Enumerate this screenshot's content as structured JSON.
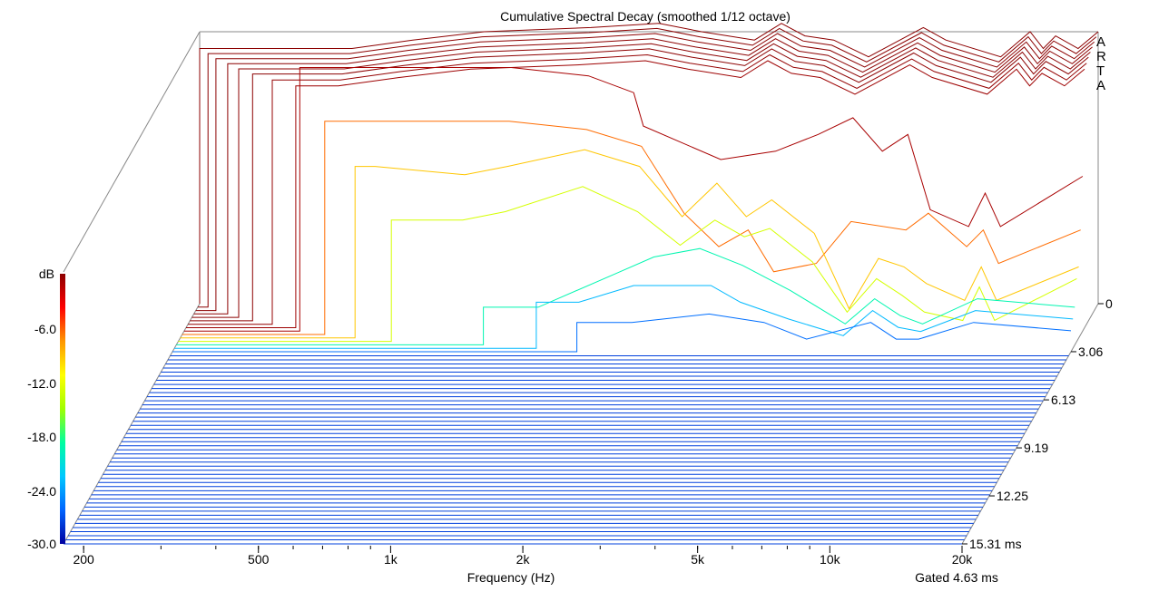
{
  "chart_data": {
    "type": "waterfall",
    "title": "Cumulative Spectral Decay (smoothed 1/12 octave)",
    "xlabel": "Frequency (Hz)",
    "footer": "Gated 4.63 ms",
    "brand_letters": [
      "A",
      "R",
      "T",
      "A"
    ],
    "xscale": "log",
    "xlim": [
      180,
      20000
    ],
    "x_ticks": [
      {
        "value": 200,
        "label": "200"
      },
      {
        "value": 500,
        "label": "500"
      },
      {
        "value": 1000,
        "label": "1k"
      },
      {
        "value": 2000,
        "label": "2k"
      },
      {
        "value": 5000,
        "label": "5k"
      },
      {
        "value": 10000,
        "label": "10k"
      },
      {
        "value": 20000,
        "label": "20k"
      }
    ],
    "z_ticks": [
      {
        "value": 0,
        "label": "0"
      },
      {
        "value": 3.06,
        "label": "3.06"
      },
      {
        "value": 6.13,
        "label": "6.13"
      },
      {
        "value": 9.19,
        "label": "9.19"
      },
      {
        "value": 12.25,
        "label": "12.25"
      },
      {
        "value": 15.31,
        "label": "15.31 ms"
      }
    ],
    "zlim": [
      0,
      15.31
    ],
    "colorbar": {
      "label": "dB",
      "ticks": [
        "-6.0",
        "-12.0",
        "-18.0",
        "-24.0",
        "-30.0"
      ],
      "range": [
        -32.5,
        0
      ],
      "colors": [
        "#0000a0",
        "#0064ff",
        "#00c8ff",
        "#00ffa0",
        "#a0ff00",
        "#ffff00",
        "#ff9600",
        "#ff0000",
        "#8c0000"
      ]
    },
    "ylim": [
      -32.5,
      0
    ],
    "front_slices": 47,
    "slices": [
      {
        "start": 180,
        "points": [
          [
            400,
            -2
          ],
          [
            550,
            -1
          ],
          [
            800,
            0
          ],
          [
            1400,
            0.5
          ],
          [
            2000,
            1
          ],
          [
            2500,
            0
          ],
          [
            3300,
            -1
          ],
          [
            3800,
            1
          ],
          [
            4300,
            -0.5
          ],
          [
            5000,
            -1
          ],
          [
            6000,
            -3
          ],
          [
            8000,
            0.5
          ],
          [
            9000,
            -1
          ],
          [
            12000,
            -3
          ],
          [
            14000,
            0
          ],
          [
            15000,
            -2
          ],
          [
            16000,
            -0.5
          ],
          [
            18000,
            -2
          ],
          [
            20000,
            0
          ]
        ]
      },
      {
        "start": 190,
        "points": [
          [
            400,
            -2.2
          ],
          [
            550,
            -1.2
          ],
          [
            800,
            -0.2
          ],
          [
            1400,
            0.3
          ],
          [
            2000,
            0.8
          ],
          [
            2500,
            -0.2
          ],
          [
            3300,
            -1.2
          ],
          [
            3800,
            0.8
          ],
          [
            4300,
            -0.7
          ],
          [
            5000,
            -1.2
          ],
          [
            6000,
            -3.2
          ],
          [
            8000,
            0.3
          ],
          [
            9000,
            -1.2
          ],
          [
            12000,
            -3.2
          ],
          [
            14000,
            -0.2
          ],
          [
            15000,
            -2.2
          ],
          [
            16000,
            -0.7
          ],
          [
            18000,
            -2.2
          ],
          [
            20000,
            -0.2
          ]
        ]
      },
      {
        "start": 200,
        "points": [
          [
            400,
            -2.4
          ],
          [
            550,
            -1.4
          ],
          [
            800,
            -0.4
          ],
          [
            1400,
            0.1
          ],
          [
            2000,
            0.6
          ],
          [
            2500,
            -0.4
          ],
          [
            3300,
            -1.4
          ],
          [
            3800,
            0.6
          ],
          [
            4300,
            -0.9
          ],
          [
            5000,
            -1.4
          ],
          [
            6000,
            -3.4
          ],
          [
            8000,
            0.1
          ],
          [
            9000,
            -1.4
          ],
          [
            12000,
            -3.4
          ],
          [
            14000,
            -0.4
          ],
          [
            15000,
            -2.4
          ],
          [
            16000,
            -0.9
          ],
          [
            18000,
            -2.4
          ],
          [
            20000,
            -0.4
          ]
        ]
      },
      {
        "start": 215,
        "points": [
          [
            400,
            -2.6
          ],
          [
            550,
            -1.6
          ],
          [
            800,
            -0.6
          ],
          [
            1400,
            -0.1
          ],
          [
            2000,
            0.4
          ],
          [
            2500,
            -0.6
          ],
          [
            3300,
            -1.6
          ],
          [
            3800,
            0.4
          ],
          [
            4300,
            -1.1
          ],
          [
            5000,
            -1.6
          ],
          [
            6000,
            -3.6
          ],
          [
            8000,
            -0.1
          ],
          [
            9000,
            -1.6
          ],
          [
            12000,
            -3.6
          ],
          [
            14000,
            -0.6
          ],
          [
            15000,
            -2.6
          ],
          [
            16000,
            -1.1
          ],
          [
            18000,
            -2.6
          ],
          [
            20000,
            -0.6
          ]
        ]
      },
      {
        "start": 230,
        "points": [
          [
            400,
            -2.8
          ],
          [
            550,
            -1.8
          ],
          [
            800,
            -0.8
          ],
          [
            1400,
            -0.3
          ],
          [
            2000,
            0.2
          ],
          [
            2500,
            -0.8
          ],
          [
            3300,
            -1.8
          ],
          [
            3800,
            0.2
          ],
          [
            4300,
            -1.3
          ],
          [
            5000,
            -1.8
          ],
          [
            6000,
            -3.8
          ],
          [
            8000,
            -0.3
          ],
          [
            9000,
            -1.8
          ],
          [
            12000,
            -3.8
          ],
          [
            14000,
            -0.8
          ],
          [
            15000,
            -2.8
          ],
          [
            16000,
            -1.3
          ],
          [
            18000,
            -2.8
          ],
          [
            20000,
            -0.8
          ]
        ]
      },
      {
        "start": 250,
        "points": [
          [
            400,
            -3
          ],
          [
            550,
            -2
          ],
          [
            800,
            -1
          ],
          [
            1400,
            -0.5
          ],
          [
            2000,
            0
          ],
          [
            2500,
            -1
          ],
          [
            3300,
            -2
          ],
          [
            3800,
            0
          ],
          [
            4300,
            -1.5
          ],
          [
            5000,
            -2
          ],
          [
            6000,
            -4
          ],
          [
            8000,
            -0.5
          ],
          [
            9000,
            -2
          ],
          [
            12000,
            -4
          ],
          [
            14000,
            -1
          ],
          [
            15000,
            -3
          ],
          [
            16000,
            -1.5
          ],
          [
            18000,
            -3
          ],
          [
            20000,
            -1
          ]
        ]
      },
      {
        "start": 280,
        "points": [
          [
            400,
            -3.3
          ],
          [
            550,
            -2.3
          ],
          [
            800,
            -1.3
          ],
          [
            1400,
            -0.8
          ],
          [
            2000,
            -0.3
          ],
          [
            2500,
            -1.3
          ],
          [
            3300,
            -2.3
          ],
          [
            3800,
            -0.3
          ],
          [
            4300,
            -1.8
          ],
          [
            5000,
            -2.3
          ],
          [
            6000,
            -4.3
          ],
          [
            8000,
            -0.8
          ],
          [
            9000,
            -2.3
          ],
          [
            12000,
            -4.3
          ],
          [
            14000,
            -1.3
          ],
          [
            15000,
            -3.3
          ],
          [
            16000,
            -1.8
          ],
          [
            18000,
            -3.3
          ],
          [
            20000,
            -1.3
          ]
        ]
      },
      {
        "start": 320,
        "points": [
          [
            400,
            -3.6
          ],
          [
            550,
            -2.6
          ],
          [
            800,
            -1.6
          ],
          [
            1400,
            -1.1
          ],
          [
            2000,
            -0.6
          ],
          [
            2500,
            -1.6
          ],
          [
            3300,
            -2.6
          ],
          [
            3800,
            -0.6
          ],
          [
            4300,
            -2.1
          ],
          [
            5000,
            -2.6
          ],
          [
            6000,
            -4.6
          ],
          [
            8000,
            -1.1
          ],
          [
            9000,
            -2.6
          ],
          [
            12000,
            -4.6
          ],
          [
            14000,
            -1.6
          ],
          [
            15000,
            -3.6
          ],
          [
            16000,
            -2.1
          ],
          [
            18000,
            -3.6
          ],
          [
            20000,
            -1.6
          ]
        ]
      },
      {
        "start": 330,
        "points": [
          [
            500,
            -1
          ],
          [
            1000,
            -1
          ],
          [
            1500,
            -2
          ],
          [
            1900,
            -4
          ],
          [
            2000,
            -8
          ],
          [
            3000,
            -12
          ],
          [
            4000,
            -11
          ],
          [
            5000,
            -9
          ],
          [
            6000,
            -7
          ],
          [
            7000,
            -11
          ],
          [
            8000,
            -9
          ],
          [
            9000,
            -18
          ],
          [
            11000,
            -20
          ],
          [
            12000,
            -16
          ],
          [
            13000,
            -20
          ],
          [
            20000,
            -14
          ]
        ]
      },
      {
        "start": 380,
        "points": [
          [
            500,
            -7
          ],
          [
            1000,
            -7
          ],
          [
            1500,
            -8
          ],
          [
            2000,
            -10
          ],
          [
            2500,
            -18
          ],
          [
            3000,
            -22
          ],
          [
            3500,
            -20
          ],
          [
            4000,
            -25
          ],
          [
            5000,
            -24
          ],
          [
            6000,
            -19
          ],
          [
            8000,
            -20
          ],
          [
            9000,
            -18
          ],
          [
            11000,
            -22
          ],
          [
            12000,
            -20
          ],
          [
            13000,
            -24
          ],
          [
            20000,
            -20
          ]
        ]
      },
      {
        "start": 450,
        "points": [
          [
            500,
            -12
          ],
          [
            800,
            -13
          ],
          [
            1000,
            -12
          ],
          [
            1500,
            -10
          ],
          [
            2000,
            -12
          ],
          [
            2500,
            -18
          ],
          [
            3000,
            -14
          ],
          [
            3500,
            -18
          ],
          [
            4000,
            -16
          ],
          [
            5000,
            -20
          ],
          [
            6000,
            -29
          ],
          [
            7000,
            -23
          ],
          [
            8000,
            -24
          ],
          [
            9000,
            -26
          ],
          [
            11000,
            -28
          ],
          [
            12000,
            -24
          ],
          [
            13000,
            -28
          ],
          [
            20000,
            -24
          ]
        ]
      },
      {
        "start": 550,
        "points": [
          [
            800,
            -18
          ],
          [
            1000,
            -17
          ],
          [
            1500,
            -14
          ],
          [
            2000,
            -17
          ],
          [
            2500,
            -21
          ],
          [
            3000,
            -18
          ],
          [
            3500,
            -20
          ],
          [
            4000,
            -19
          ],
          [
            5000,
            -23
          ],
          [
            6000,
            -29
          ],
          [
            7000,
            -25
          ],
          [
            8000,
            -27
          ],
          [
            9000,
            -29
          ],
          [
            11000,
            -30
          ],
          [
            12000,
            -26
          ],
          [
            13000,
            -30
          ],
          [
            20000,
            -25
          ]
        ]
      },
      {
        "start": 900,
        "points": [
          [
            1200,
            -28
          ],
          [
            1800,
            -24
          ],
          [
            2200,
            -22
          ],
          [
            2800,
            -21
          ],
          [
            3500,
            -23
          ],
          [
            4500,
            -26
          ],
          [
            6000,
            -30
          ],
          [
            7000,
            -27
          ],
          [
            8000,
            -29
          ],
          [
            9000,
            -30
          ],
          [
            12000,
            -27
          ],
          [
            20000,
            -28
          ]
        ]
      },
      {
        "start": 1200,
        "points": [
          [
            1500,
            -27
          ],
          [
            2000,
            -25
          ],
          [
            3000,
            -25
          ],
          [
            3500,
            -27
          ],
          [
            4500,
            -29
          ],
          [
            6000,
            -31
          ],
          [
            7000,
            -28
          ],
          [
            8000,
            -30
          ],
          [
            9000,
            -30.5
          ],
          [
            12000,
            -28
          ],
          [
            20000,
            -29
          ]
        ]
      },
      {
        "start": 1500,
        "points": [
          [
            2000,
            -29
          ],
          [
            3000,
            -28
          ],
          [
            4000,
            -29
          ],
          [
            5000,
            -31
          ],
          [
            7000,
            -29
          ],
          [
            8000,
            -31
          ],
          [
            9000,
            -31
          ],
          [
            12000,
            -29
          ],
          [
            20000,
            -30
          ]
        ]
      }
    ]
  }
}
